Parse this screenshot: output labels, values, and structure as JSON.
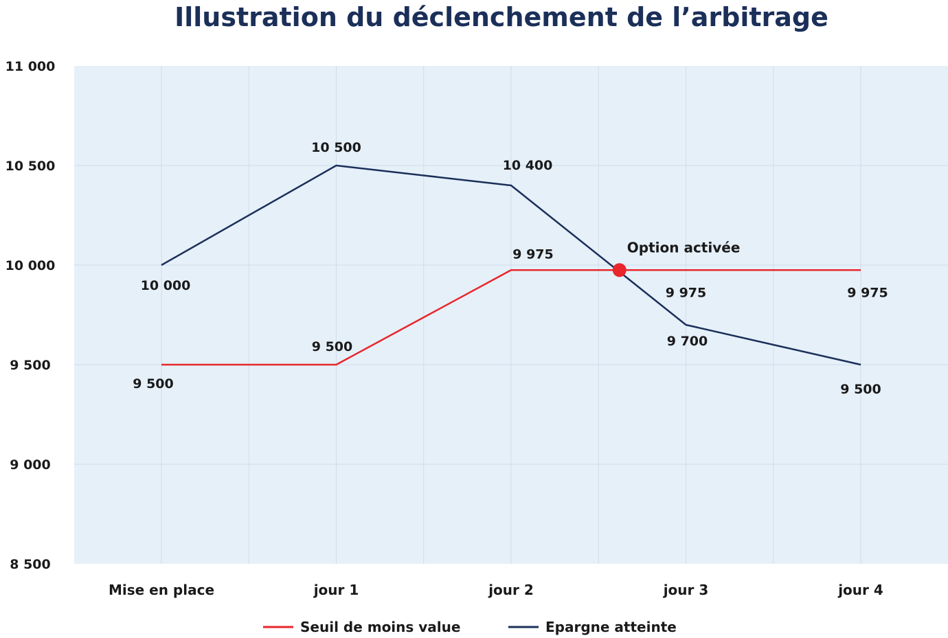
{
  "chart_data": {
    "type": "line",
    "title": "Illustration du déclenchement de l’arbitrage",
    "categories": [
      "Mise en place",
      "jour 1",
      "jour 2",
      "jour 3",
      "jour 4"
    ],
    "ylim": [
      8500,
      11000
    ],
    "yticks": [
      8500,
      9000,
      9500,
      10000,
      10500,
      11000
    ],
    "ytick_labels": [
      "8 500",
      "9 000",
      "9 500",
      "10 000",
      "10 500",
      "11 000"
    ],
    "grid": true,
    "legend_position": "bottom",
    "colors": {
      "plot_background": "#e6f0f9",
      "grid": "#cfdde9"
    },
    "series": [
      {
        "name": "Seuil de moins value",
        "color": "#e8262b",
        "values": [
          9500,
          9500,
          9975,
          9975,
          9975
        ],
        "labels": [
          "9 500",
          "9 500",
          "9 975",
          "9 975",
          "9 975"
        ]
      },
      {
        "name": "Epargne atteinte",
        "color": "#1b2f59",
        "values": [
          10000,
          10500,
          10400,
          9700,
          9500
        ],
        "labels": [
          "10 000",
          "10 500",
          "10 400",
          "9 700",
          "9 500"
        ]
      }
    ],
    "annotations": [
      {
        "text": "Option activée",
        "x_index": 2.62,
        "y": 9975,
        "marker_color": "#e8262b"
      }
    ]
  }
}
